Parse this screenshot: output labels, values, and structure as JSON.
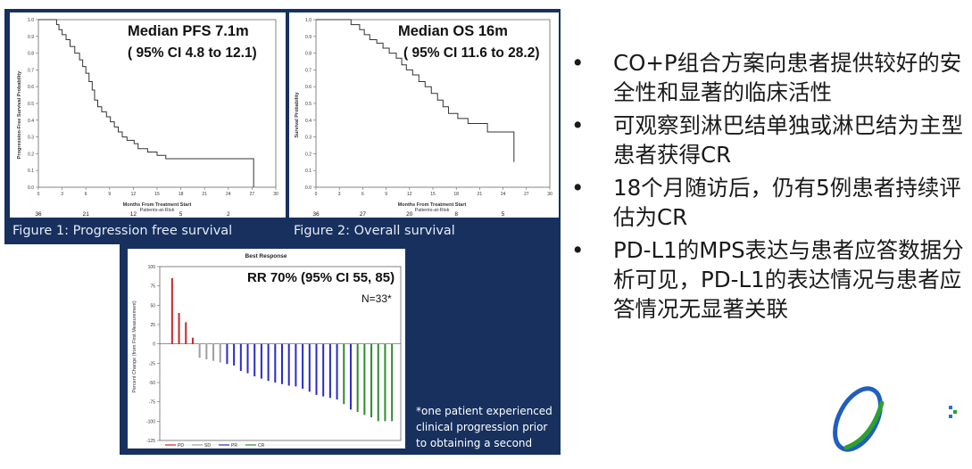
{
  "figures": {
    "pfs": {
      "caption": "Figure 1: Progression free survival",
      "headline": "Median PFS 7.1m",
      "ci": "( 95% CI 4.8 to 12.1)",
      "xlabel": "Months From Treatment Start",
      "ylabel": "Progression-Free Survival Probability",
      "risk_label": "Patients-at-Risk",
      "risk_counts": [
        "36",
        "21",
        "12",
        "5",
        "2"
      ]
    },
    "os": {
      "caption": "Figure 2: Overall survival",
      "headline": "Median OS 16m",
      "ci": "( 95% CI 11.6 to 28.2)",
      "xlabel": "Months From Treatment Start",
      "ylabel": "Survival Probability",
      "risk_label": "Patients-at-Risk",
      "risk_counts": [
        "36",
        "27",
        "20",
        "8",
        "5"
      ]
    },
    "waterfall": {
      "title": "Best Response",
      "headline": "RR 70% (95% CI 55, 85)",
      "n_label": "N=33*",
      "ylabel": "Percent Change (from First Measurement)",
      "footnote": "*one patient experienced clinical progression prior to obtaining a second scan"
    }
  },
  "bullets": [
    "CO+P组合方案向患者提供较好的安全性和显著的临床活性",
    "可观察到淋巴结单独或淋巴结为主型患者获得CR",
    "18个月随访后，仍有5例患者持续评估为CR",
    "PD-L1的MPS表达与患者应答数据分析可见，PD-L1的表达情况与患者应答情况无显著关联"
  ],
  "bullet_glyph": "•",
  "colors": {
    "navy_background": "#17305e",
    "pd": "#c62828",
    "sd": "#9e9e9e",
    "pr": "#2b2bc8",
    "cr": "#2e8b2e"
  },
  "chart_data": [
    {
      "type": "line",
      "name": "pfs",
      "xlim": [
        0,
        30
      ],
      "ylim": [
        0,
        1
      ],
      "xticks": [
        0,
        3,
        6,
        9,
        12,
        15,
        18,
        21,
        24,
        27,
        30
      ],
      "yticks": [
        0,
        0.1,
        0.2,
        0.3,
        0.4,
        0.5,
        0.6,
        0.7,
        0.8,
        0.9,
        1.0
      ],
      "step_x": [
        0,
        1.8,
        2.3,
        2.6,
        3.0,
        3.5,
        4.0,
        4.6,
        5.2,
        5.6,
        6.0,
        6.4,
        6.8,
        7.1,
        7.5,
        8.0,
        8.6,
        9.1,
        9.6,
        10.1,
        10.6,
        11.2,
        12.1,
        12.6,
        13.8,
        15.0,
        16.1,
        27.2,
        27.2
      ],
      "step_y": [
        1,
        1,
        0.97,
        0.94,
        0.91,
        0.88,
        0.84,
        0.8,
        0.76,
        0.72,
        0.68,
        0.63,
        0.58,
        0.52,
        0.48,
        0.45,
        0.42,
        0.39,
        0.36,
        0.33,
        0.3,
        0.28,
        0.26,
        0.23,
        0.21,
        0.19,
        0.17,
        0.17,
        0
      ],
      "risk_x": [
        0,
        6,
        12,
        18,
        24
      ],
      "risk_counts": [
        36,
        21,
        12,
        5,
        2
      ]
    },
    {
      "type": "line",
      "name": "os",
      "xlim": [
        0,
        30
      ],
      "ylim": [
        0,
        1
      ],
      "xticks": [
        0,
        3,
        6,
        9,
        12,
        15,
        18,
        21,
        24,
        27,
        30
      ],
      "yticks": [
        0,
        0.1,
        0.2,
        0.3,
        0.4,
        0.5,
        0.6,
        0.7,
        0.8,
        0.9,
        1.0
      ],
      "step_x": [
        0,
        3.9,
        4.5,
        5.6,
        6.2,
        6.9,
        7.8,
        8.6,
        9.4,
        10.3,
        11.0,
        11.6,
        12.4,
        13.2,
        14.0,
        14.8,
        15.6,
        16.3,
        17.0,
        18.2,
        19.5,
        22.0,
        25.4,
        25.4
      ],
      "step_y": [
        1,
        1,
        0.97,
        0.94,
        0.91,
        0.88,
        0.86,
        0.83,
        0.8,
        0.77,
        0.73,
        0.7,
        0.67,
        0.63,
        0.6,
        0.56,
        0.52,
        0.48,
        0.44,
        0.41,
        0.38,
        0.33,
        0.33,
        0.15
      ],
      "risk_x": [
        0,
        6,
        12,
        18,
        24
      ],
      "risk_counts": [
        36,
        27,
        20,
        8,
        5
      ]
    },
    {
      "type": "bar",
      "name": "best_response",
      "ylim": [
        -125,
        100
      ],
      "yticks": [
        100,
        75,
        50,
        25,
        0,
        -25,
        -50,
        -75,
        -100,
        -125
      ],
      "legend": [
        "PD",
        "SD",
        "PR",
        "CR"
      ],
      "legend_position": "bottom-left",
      "values": [
        85,
        40,
        28,
        8,
        -18,
        -20,
        -22,
        -24,
        -26,
        -28,
        -35,
        -38,
        -42,
        -45,
        -48,
        -50,
        -52,
        -54,
        -55,
        -58,
        -62,
        -66,
        -68,
        -70,
        -72,
        -78,
        -85,
        -88,
        -92,
        -95,
        -100,
        -100,
        -100
      ],
      "response": [
        "PD",
        "PD",
        "PD",
        "PD",
        "SD",
        "SD",
        "SD",
        "SD",
        "PR",
        "PR",
        "PR",
        "PR",
        "PR",
        "PR",
        "PR",
        "PR",
        "PR",
        "PR",
        "PR",
        "PR",
        "PR",
        "PR",
        "PR",
        "PR",
        "PR",
        "CR",
        "PR",
        "CR",
        "CR",
        "CR",
        "CR",
        "CR",
        "CR"
      ]
    }
  ]
}
